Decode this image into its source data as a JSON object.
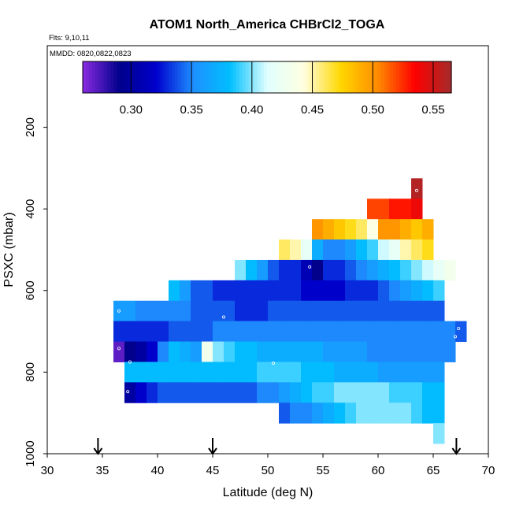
{
  "chart_data": {
    "type": "heatmap",
    "title": "ATOM1 North_America CHBrCl2_TOGA",
    "flights_label": "Flts: 9,10,11",
    "mmdd_label": "MMDD: 0820,0822,0823",
    "xlabel": "Latitude (deg N)",
    "ylabel": "PSXC (mbar)",
    "xlim": [
      30,
      70
    ],
    "ylim": [
      1000,
      0
    ],
    "x_ticks": [
      "30",
      "35",
      "40",
      "45",
      "50",
      "55",
      "60",
      "65",
      "70"
    ],
    "x_tick_values": [
      30,
      35,
      40,
      45,
      50,
      55,
      60,
      65,
      70
    ],
    "y_ticks": [
      "200",
      "400",
      "600",
      "800",
      "1000"
    ],
    "y_tick_values": [
      200,
      400,
      600,
      800,
      1000
    ],
    "colorbar": {
      "range": [
        0.26,
        0.565
      ],
      "ticks": [
        "0.30",
        "0.35",
        "0.40",
        "0.45",
        "0.50",
        "0.55"
      ],
      "tick_values": [
        0.3,
        0.35,
        0.4,
        0.45,
        0.5,
        0.55
      ],
      "colors": [
        "#8a2be2",
        "#00008b",
        "#0000cd",
        "#1e90ff",
        "#00bfff",
        "#e0ffff",
        "#ffffe0",
        "#ffd700",
        "#ff8c00",
        "#ff0000",
        "#a52a2a"
      ]
    },
    "cell_width_deg": 1,
    "cell_height_mbar": 50,
    "rows": [
      {
        "p": 350,
        "x0": 63,
        "values": [
          0.56
        ]
      },
      {
        "p": 400,
        "x0": 59,
        "values": [
          0.52,
          0.52,
          0.53,
          0.53,
          0.54
        ]
      },
      {
        "p": 450,
        "x0": 54,
        "values": [
          0.5,
          0.49,
          0.48,
          0.47,
          0.46,
          0.44,
          0.5,
          0.5,
          0.49,
          0.48,
          0.49
        ]
      },
      {
        "p": 500,
        "x0": 51,
        "values": [
          0.46,
          0.45,
          0.42,
          0.37,
          0.35,
          0.35,
          0.36,
          0.38,
          0.39,
          0.41,
          0.42,
          0.45,
          0.46,
          0.47
        ]
      },
      {
        "p": 550,
        "x0": 47,
        "values": [
          0.4,
          0.38,
          0.36,
          0.34,
          0.33,
          0.33,
          0.31,
          0.29,
          0.33,
          0.33,
          0.34,
          0.35,
          0.36,
          0.37,
          0.38,
          0.39,
          0.4,
          0.41,
          0.42,
          0.43
        ]
      },
      {
        "p": 600,
        "x0": 41,
        "values": [
          0.38,
          0.36,
          0.34,
          0.34,
          0.33,
          0.33,
          0.33,
          0.33,
          0.33,
          0.33,
          0.33,
          0.33,
          0.32,
          0.32,
          0.32,
          0.32,
          0.33,
          0.33,
          0.33,
          0.34,
          0.35,
          0.36,
          0.37,
          0.38,
          0.39
        ]
      },
      {
        "p": 650,
        "x0": 36,
        "values": [
          0.36,
          0.36,
          0.35,
          0.35,
          0.35,
          0.35,
          0.35,
          0.34,
          0.34,
          0.34,
          0.34,
          0.33,
          0.33,
          0.33,
          0.34,
          0.34,
          0.34,
          0.34,
          0.34,
          0.34,
          0.34,
          0.34,
          0.34,
          0.34,
          0.34,
          0.34,
          0.34,
          0.34,
          0.34,
          0.34
        ]
      },
      {
        "p": 700,
        "x0": 36,
        "values": [
          0.33,
          0.33,
          0.33,
          0.33,
          0.33,
          0.34,
          0.34,
          0.34,
          0.34,
          0.35,
          0.35,
          0.35,
          0.35,
          0.35,
          0.35,
          0.35,
          0.35,
          0.35,
          0.35,
          0.35,
          0.35,
          0.35,
          0.35,
          0.35,
          0.35,
          0.35,
          0.35,
          0.35,
          0.35,
          0.35,
          0.35,
          0.34
        ]
      },
      {
        "p": 750,
        "x0": 36,
        "values": [
          0.27,
          0.29,
          0.3,
          0.32,
          0.35,
          0.38,
          0.37,
          0.36,
          0.43,
          0.4,
          0.39,
          0.38,
          0.38,
          0.37,
          0.37,
          0.37,
          0.37,
          0.37,
          0.37,
          0.36,
          0.36,
          0.36,
          0.36,
          0.35,
          0.35,
          0.35,
          0.35,
          0.35,
          0.35,
          0.35,
          0.35
        ]
      },
      {
        "p": 800,
        "x0": 37,
        "values": [
          0.38,
          0.38,
          0.38,
          0.38,
          0.38,
          0.38,
          0.38,
          0.38,
          0.38,
          0.38,
          0.38,
          0.38,
          0.39,
          0.39,
          0.39,
          0.39,
          0.38,
          0.38,
          0.38,
          0.37,
          0.37,
          0.37,
          0.37,
          0.36,
          0.36,
          0.36,
          0.36,
          0.36,
          0.36
        ]
      },
      {
        "p": 850,
        "x0": 37,
        "values": [
          0.3,
          0.32,
          0.33,
          0.34,
          0.34,
          0.34,
          0.34,
          0.34,
          0.34,
          0.34,
          0.34,
          0.34,
          0.35,
          0.35,
          0.36,
          0.37,
          0.38,
          0.39,
          0.39,
          0.4,
          0.4,
          0.4,
          0.4,
          0.4,
          0.39,
          0.39,
          0.39,
          0.38,
          0.38
        ]
      },
      {
        "p": 900,
        "x0": 51,
        "values": [
          0.34,
          0.35,
          0.35,
          0.36,
          0.37,
          0.38,
          0.39,
          0.4,
          0.4,
          0.4,
          0.4,
          0.4,
          0.39,
          0.38,
          0.38
        ]
      },
      {
        "p": 950,
        "x0": 65,
        "values": [
          0.4
        ]
      }
    ],
    "markers": [
      {
        "lat": 63.5,
        "p": 355
      },
      {
        "lat": 53.8,
        "p": 542
      },
      {
        "lat": 36.5,
        "p": 650
      },
      {
        "lat": 46.0,
        "p": 665
      },
      {
        "lat": 67.3,
        "p": 693
      },
      {
        "lat": 67.0,
        "p": 713
      },
      {
        "lat": 36.5,
        "p": 742
      },
      {
        "lat": 37.5,
        "p": 775
      },
      {
        "lat": 50.5,
        "p": 778
      },
      {
        "lat": 37.3,
        "p": 848
      }
    ],
    "flight_arrows_lat": [
      34.6,
      45.0,
      67.1
    ]
  }
}
